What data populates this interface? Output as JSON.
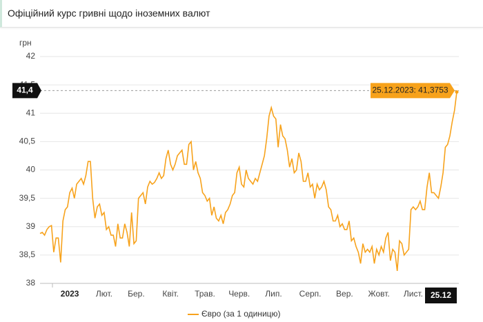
{
  "chart_data": {
    "type": "line",
    "title": "Офіційний курс гривні щодо іноземних валют",
    "y_label": "грн",
    "xlim": [
      0,
      182
    ],
    "xticks": [
      {
        "value": 13,
        "label": "2023"
      },
      {
        "value": 28,
        "label": "Лют."
      },
      {
        "value": 42,
        "label": "Бер."
      },
      {
        "value": 57,
        "label": "Квіт."
      },
      {
        "value": 72,
        "label": "Трав."
      },
      {
        "value": 87,
        "label": "Черв."
      },
      {
        "value": 102,
        "label": "Лип."
      },
      {
        "value": 118,
        "label": "Серп."
      },
      {
        "value": 133,
        "label": "Вер."
      },
      {
        "value": 148,
        "label": "Жовт."
      },
      {
        "value": 163,
        "label": "Лист."
      },
      {
        "value": 182,
        "label": "25.12"
      }
    ],
    "ylim": [
      38,
      42
    ],
    "yticks": [
      38,
      {
        "value": 38.5,
        "label": "38,5"
      },
      39,
      {
        "value": 39.5,
        "label": "39,5"
      },
      40,
      {
        "value": 40.5,
        "label": "40,5"
      },
      41,
      {
        "value": 41.5,
        "label": "41,5"
      },
      42
    ],
    "grid": true,
    "crosshair": {
      "value": 41.4,
      "label": "41,4"
    },
    "tooltip": "25.12.2023: 41,3753",
    "series": [
      {
        "name": "Євро (за 1 одиницю)",
        "color": "#f7a21b",
        "values": [
          38.88,
          38.9,
          38.85,
          38.95,
          39.0,
          39.02,
          38.55,
          38.8,
          38.8,
          38.37,
          39.1,
          39.3,
          39.35,
          39.6,
          39.68,
          39.5,
          39.75,
          39.8,
          39.85,
          39.75,
          39.9,
          40.15,
          40.15,
          39.5,
          39.15,
          39.35,
          39.4,
          39.2,
          39.25,
          38.95,
          39.0,
          38.85,
          38.85,
          38.65,
          39.05,
          38.8,
          38.8,
          39.05,
          38.9,
          38.65,
          39.25,
          38.7,
          38.75,
          39.5,
          39.55,
          39.6,
          39.4,
          39.7,
          39.8,
          39.75,
          39.78,
          39.85,
          39.95,
          39.85,
          39.9,
          40.2,
          40.35,
          40.1,
          40.0,
          40.1,
          40.25,
          40.3,
          40.35,
          40.1,
          40.1,
          40.45,
          40.5,
          40.0,
          40.15,
          39.95,
          39.85,
          39.6,
          39.55,
          39.45,
          39.5,
          39.2,
          39.35,
          39.15,
          39.1,
          39.2,
          39.05,
          39.25,
          39.3,
          39.4,
          39.55,
          39.6,
          39.95,
          40.05,
          39.75,
          39.7,
          40.0,
          39.85,
          39.8,
          39.75,
          39.85,
          39.8,
          39.95,
          40.1,
          40.25,
          40.55,
          40.95,
          41.1,
          40.95,
          40.9,
          40.4,
          40.8,
          40.6,
          40.55,
          40.35,
          40.05,
          40.2,
          39.95,
          40.0,
          40.3,
          40.15,
          39.8,
          39.8,
          39.95,
          39.7,
          39.75,
          39.5,
          39.75,
          39.65,
          39.7,
          39.8,
          39.65,
          39.35,
          39.3,
          39.1,
          39.1,
          39.2,
          39.0,
          39.05,
          38.95,
          38.95,
          39.1,
          38.75,
          38.8,
          38.65,
          38.55,
          38.35,
          38.7,
          38.55,
          38.6,
          38.55,
          38.65,
          38.35,
          38.6,
          38.5,
          38.65,
          38.55,
          38.8,
          38.9,
          38.4,
          38.6,
          38.55,
          38.22,
          38.75,
          38.7,
          38.5,
          38.55,
          38.6,
          39.3,
          39.35,
          39.3,
          39.35,
          39.45,
          39.3,
          39.3,
          39.7,
          39.95,
          39.6,
          39.6,
          39.55,
          39.5,
          39.7,
          39.95,
          40.4,
          40.45,
          40.6,
          40.85,
          41.05,
          41.3753
        ]
      }
    ]
  }
}
